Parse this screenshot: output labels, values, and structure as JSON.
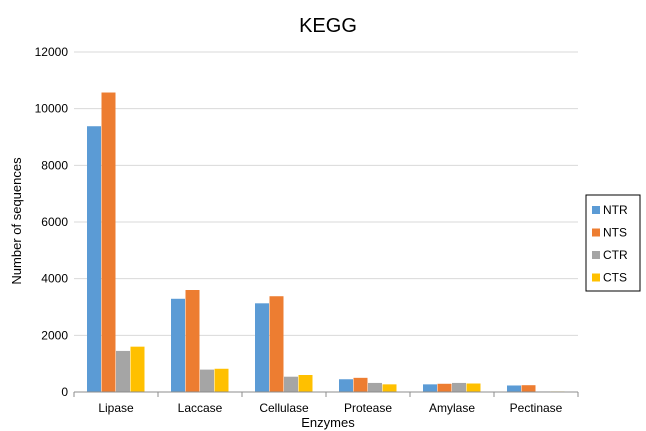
{
  "chart_data": {
    "type": "bar",
    "title": "KEGG",
    "xlabel": "Enzymes",
    "ylabel": "Number of sequences",
    "categories": [
      "Lipase",
      "Laccase",
      "Cellulase",
      "Protease",
      "Amylase",
      "Pectinase"
    ],
    "series": [
      {
        "name": "NTR",
        "color": "#5b9bd5",
        "values": [
          9380,
          3290,
          3130,
          450,
          270,
          230
        ]
      },
      {
        "name": "NTS",
        "color": "#ed7d31",
        "values": [
          10570,
          3600,
          3380,
          500,
          290,
          240
        ]
      },
      {
        "name": "CTR",
        "color": "#a5a5a5",
        "values": [
          1450,
          790,
          540,
          320,
          320,
          20
        ]
      },
      {
        "name": "CTS",
        "color": "#ffc000",
        "values": [
          1600,
          820,
          600,
          270,
          300,
          20
        ]
      }
    ],
    "ylim": [
      0,
      12000
    ],
    "yticks": [
      0,
      2000,
      4000,
      6000,
      8000,
      10000,
      12000
    ],
    "grid": true,
    "legend_position": "right"
  }
}
